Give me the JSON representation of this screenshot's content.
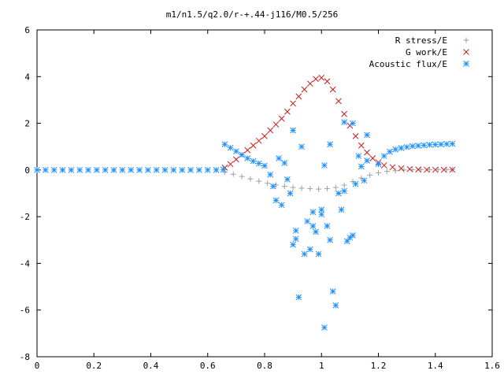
{
  "colors": {
    "r_stress": "#a0a0a0",
    "g_work": "#cc1a1a",
    "acoustic": "#1e90ff",
    "axes": "#000000",
    "background": "#ffffff"
  },
  "chart_data": {
    "type": "scatter",
    "title": "m1/n1.5/q2.0/r-+.44-j116/M0.5/256",
    "xlabel": "",
    "ylabel": "",
    "xlim": [
      0,
      1.6
    ],
    "ylim": [
      -8,
      6
    ],
    "xticks": [
      "0",
      "0.2",
      "0.4",
      "0.6",
      "0.8",
      "1",
      "1.2",
      "1.4",
      "1.6"
    ],
    "yticks": [
      "-8",
      "-6",
      "-4",
      "-2",
      "0",
      "2",
      "4",
      "6"
    ],
    "grid": false,
    "legend_position": "top-right",
    "series": [
      {
        "name": "R stress/E",
        "marker": "plus",
        "color": "#a0a0a0",
        "points": [
          [
            0.66,
            -0.1
          ],
          [
            0.69,
            -0.18
          ],
          [
            0.72,
            -0.28
          ],
          [
            0.75,
            -0.38
          ],
          [
            0.78,
            -0.48
          ],
          [
            0.81,
            -0.57
          ],
          [
            0.84,
            -0.64
          ],
          [
            0.87,
            -0.7
          ],
          [
            0.9,
            -0.75
          ],
          [
            0.93,
            -0.78
          ],
          [
            0.96,
            -0.8
          ],
          [
            0.99,
            -0.82
          ],
          [
            1.02,
            -0.8
          ],
          [
            1.05,
            -0.75
          ],
          [
            1.08,
            -0.65
          ],
          [
            1.11,
            -0.5
          ],
          [
            1.14,
            -0.35
          ],
          [
            1.17,
            -0.22
          ],
          [
            1.2,
            -0.12
          ],
          [
            1.23,
            -0.06
          ],
          [
            1.26,
            -0.03
          ],
          [
            1.29,
            0.0
          ],
          [
            1.32,
            0.01
          ],
          [
            1.35,
            0.02
          ],
          [
            1.38,
            0.02
          ],
          [
            1.41,
            0.02
          ],
          [
            1.44,
            0.02
          ],
          [
            1.46,
            0.02
          ]
        ]
      },
      {
        "name": "G work/E",
        "marker": "cross",
        "color": "#cc1a1a",
        "points": [
          [
            0.66,
            0.1
          ],
          [
            0.68,
            0.25
          ],
          [
            0.7,
            0.45
          ],
          [
            0.72,
            0.65
          ],
          [
            0.74,
            0.85
          ],
          [
            0.76,
            1.05
          ],
          [
            0.78,
            1.25
          ],
          [
            0.8,
            1.45
          ],
          [
            0.82,
            1.7
          ],
          [
            0.84,
            1.95
          ],
          [
            0.86,
            2.2
          ],
          [
            0.88,
            2.5
          ],
          [
            0.9,
            2.85
          ],
          [
            0.92,
            3.15
          ],
          [
            0.94,
            3.45
          ],
          [
            0.96,
            3.7
          ],
          [
            0.98,
            3.9
          ],
          [
            1.0,
            3.95
          ],
          [
            1.02,
            3.8
          ],
          [
            1.04,
            3.45
          ],
          [
            1.06,
            2.95
          ],
          [
            1.08,
            2.4
          ],
          [
            1.1,
            1.9
          ],
          [
            1.12,
            1.45
          ],
          [
            1.14,
            1.05
          ],
          [
            1.16,
            0.75
          ],
          [
            1.18,
            0.5
          ],
          [
            1.2,
            0.33
          ],
          [
            1.22,
            0.2
          ],
          [
            1.25,
            0.12
          ],
          [
            1.28,
            0.07
          ],
          [
            1.31,
            0.04
          ],
          [
            1.34,
            0.02
          ],
          [
            1.37,
            0.01
          ],
          [
            1.4,
            0.01
          ],
          [
            1.43,
            0.01
          ],
          [
            1.46,
            0.01
          ]
        ]
      },
      {
        "name": "Acoustic flux/E",
        "marker": "star",
        "color": "#1e90ff",
        "points": [
          [
            0.0,
            0.0
          ],
          [
            0.03,
            0.0
          ],
          [
            0.06,
            0.0
          ],
          [
            0.09,
            0.0
          ],
          [
            0.12,
            0.0
          ],
          [
            0.15,
            0.0
          ],
          [
            0.18,
            0.0
          ],
          [
            0.21,
            0.0
          ],
          [
            0.24,
            0.0
          ],
          [
            0.27,
            0.0
          ],
          [
            0.3,
            0.0
          ],
          [
            0.33,
            0.0
          ],
          [
            0.36,
            0.0
          ],
          [
            0.39,
            0.0
          ],
          [
            0.42,
            0.0
          ],
          [
            0.45,
            0.0
          ],
          [
            0.48,
            0.0
          ],
          [
            0.51,
            0.0
          ],
          [
            0.54,
            0.0
          ],
          [
            0.57,
            0.0
          ],
          [
            0.6,
            0.0
          ],
          [
            0.63,
            0.0
          ],
          [
            0.655,
            0.02
          ],
          [
            0.66,
            1.1
          ],
          [
            0.68,
            0.95
          ],
          [
            0.7,
            0.8
          ],
          [
            0.72,
            0.65
          ],
          [
            0.74,
            0.5
          ],
          [
            0.76,
            0.38
          ],
          [
            0.78,
            0.28
          ],
          [
            0.8,
            0.18
          ],
          [
            0.82,
            -0.2
          ],
          [
            0.83,
            -0.7
          ],
          [
            0.84,
            -1.3
          ],
          [
            0.86,
            -1.5
          ],
          [
            0.85,
            0.5
          ],
          [
            0.87,
            0.3
          ],
          [
            0.88,
            -0.4
          ],
          [
            0.89,
            -1.0
          ],
          [
            0.9,
            1.7
          ],
          [
            0.91,
            -2.6
          ],
          [
            0.9,
            -3.2
          ],
          [
            0.91,
            -2.95
          ],
          [
            0.92,
            -5.45
          ],
          [
            0.93,
            1.0
          ],
          [
            0.94,
            -3.6
          ],
          [
            0.95,
            -2.2
          ],
          [
            0.96,
            -3.4
          ],
          [
            0.97,
            -2.4
          ],
          [
            0.98,
            -2.65
          ],
          [
            0.99,
            -3.6
          ],
          [
            0.97,
            -1.8
          ],
          [
            1.0,
            -1.9
          ],
          [
            1.0,
            -1.7
          ],
          [
            1.01,
            0.2
          ],
          [
            1.02,
            -2.4
          ],
          [
            1.03,
            -3.0
          ],
          [
            1.01,
            -6.75
          ],
          [
            1.04,
            -5.2
          ],
          [
            1.05,
            -5.8
          ],
          [
            1.03,
            1.1
          ],
          [
            1.06,
            -1.0
          ],
          [
            1.07,
            -1.7
          ],
          [
            1.08,
            -0.9
          ],
          [
            1.09,
            -3.05
          ],
          [
            1.1,
            -2.9
          ],
          [
            1.11,
            -2.8
          ],
          [
            1.12,
            -0.6
          ],
          [
            1.13,
            0.6
          ],
          [
            1.14,
            0.15
          ],
          [
            1.15,
            -0.45
          ],
          [
            1.16,
            1.5
          ],
          [
            1.08,
            2.05
          ],
          [
            1.11,
            2.0
          ],
          [
            1.16,
            0.4
          ],
          [
            1.2,
            0.25
          ],
          [
            1.22,
            0.6
          ],
          [
            1.24,
            0.78
          ],
          [
            1.26,
            0.88
          ],
          [
            1.28,
            0.94
          ],
          [
            1.3,
            0.98
          ],
          [
            1.32,
            1.02
          ],
          [
            1.34,
            1.04
          ],
          [
            1.36,
            1.06
          ],
          [
            1.38,
            1.08
          ],
          [
            1.4,
            1.09
          ],
          [
            1.42,
            1.1
          ],
          [
            1.44,
            1.11
          ],
          [
            1.46,
            1.12
          ]
        ]
      }
    ]
  }
}
